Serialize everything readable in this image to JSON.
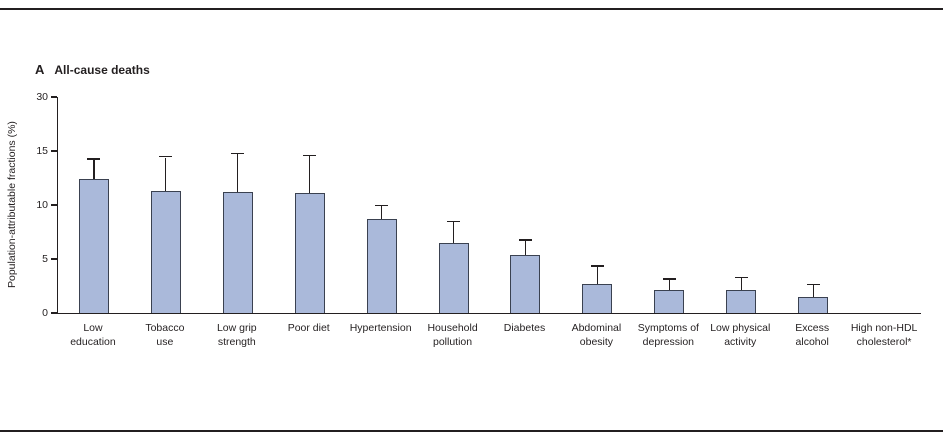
{
  "figure": {
    "panel_label": "A",
    "panel_title": "All-cause deaths"
  },
  "chart_data": {
    "type": "bar",
    "title": "All-cause deaths",
    "ylabel": "Population-attributable fractions (%)",
    "y_tick_labels": [
      "0",
      "5",
      "10",
      "15",
      "30"
    ],
    "categories": [
      "Low education",
      "Tobacco use",
      "Low grip strength",
      "Poor diet",
      "Hypertension",
      "Household pollution",
      "Diabetes",
      "Abdominal obesity",
      "Symptoms of depression",
      "Low physical activity",
      "Excess alcohol",
      "High non-HDL cholesterol*"
    ],
    "label_lines": [
      [
        "Low",
        "education"
      ],
      [
        "Tobacco",
        "use"
      ],
      [
        "Low grip",
        "strength"
      ],
      [
        "Poor diet"
      ],
      [
        "Hypertension"
      ],
      [
        "Household",
        "pollution"
      ],
      [
        "Diabetes"
      ],
      [
        "Abdominal",
        "obesity"
      ],
      [
        "Symptoms of",
        "depression"
      ],
      [
        "Low physical",
        "activity"
      ],
      [
        "Excess",
        "alcohol"
      ],
      [
        "High non-HDL",
        "cholesterol*"
      ]
    ],
    "values": [
      12.4,
      11.3,
      11.2,
      11.1,
      8.7,
      6.5,
      5.4,
      2.7,
      2.1,
      2.1,
      1.5,
      0
    ],
    "upper_ci": [
      14.2,
      14.4,
      14.7,
      14.5,
      9.9,
      8.4,
      6.7,
      4.3,
      3.1,
      3.2,
      2.6,
      0
    ],
    "bar_fill": "#aab9da",
    "bar_stroke": "#3a4150",
    "axis_color": "#231f20"
  }
}
